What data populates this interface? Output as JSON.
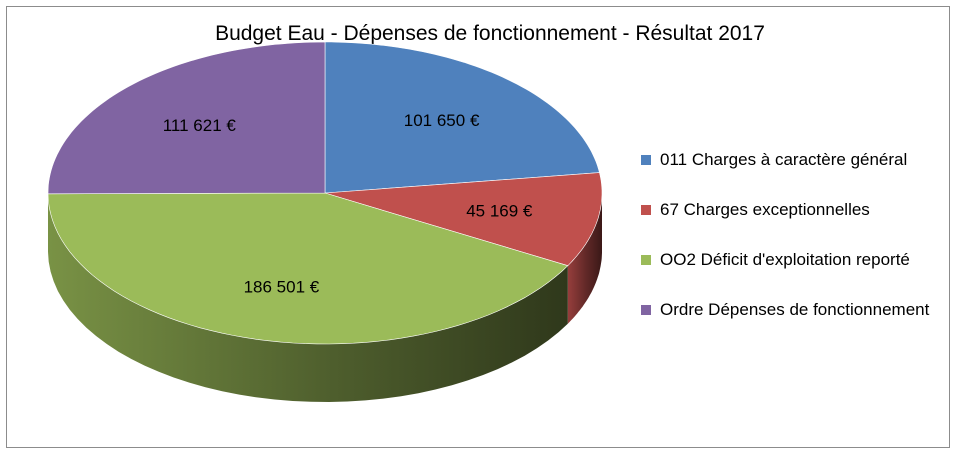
{
  "chart_data": {
    "type": "pie",
    "title": "Budget Eau - Dépenses de fonctionnement - Résultat 2017",
    "legend_position": "right",
    "three_d": true,
    "slices": [
      {
        "name": "011 Charges à caractère général",
        "value": 101650,
        "label": "101 650 €",
        "color": "#4f81bd"
      },
      {
        "name": "67 Charges exceptionnelles",
        "value": 45169,
        "label": "45 169 €",
        "color": "#c0504d"
      },
      {
        "name": "OO2 Déficit d'exploitation reporté",
        "value": 186501,
        "label": "186 501 €",
        "color": "#9bbb59"
      },
      {
        "name": "Ordre Dépenses de fonctionnement",
        "value": 111621,
        "label": "111 621 €",
        "color": "#8064a2"
      }
    ]
  }
}
